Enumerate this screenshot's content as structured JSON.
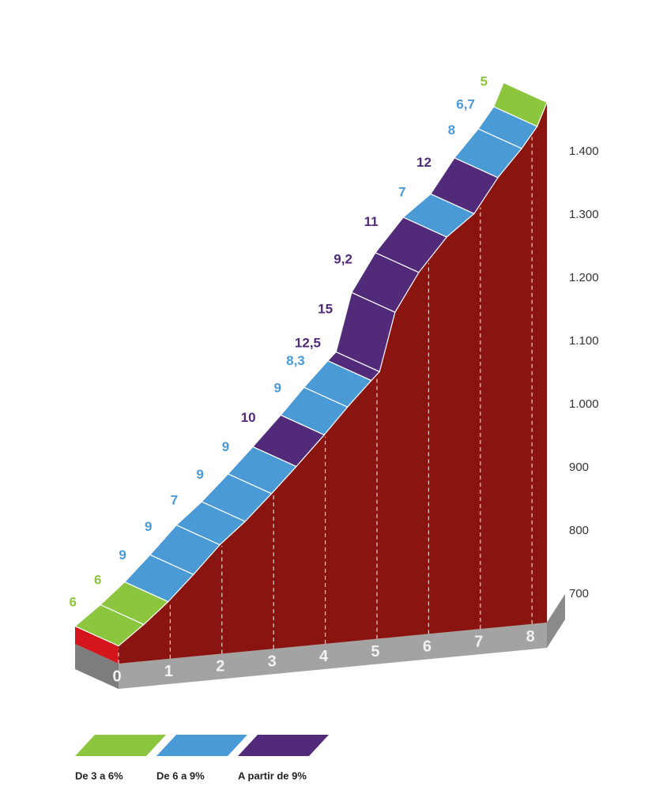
{
  "chart_data": {
    "type": "climb-profile",
    "km": [
      0,
      0.49,
      0.96,
      1.45,
      1.96,
      2.45,
      2.96,
      3.44,
      3.98,
      4.43,
      4.89,
      5.05,
      5.35,
      5.81,
      6.35,
      6.88,
      7.34,
      7.8,
      8.1,
      8.29
    ],
    "elevation": [
      618,
      652,
      688,
      731,
      778,
      815,
      859,
      902,
      952,
      996,
      1038,
      1052,
      1146,
      1209,
      1265,
      1302,
      1359,
      1405,
      1440,
      1478
    ],
    "gradients": [
      6,
      6,
      9,
      9,
      7,
      9,
      9,
      10,
      9,
      8.3,
      12.5,
      15,
      9.2,
      11,
      7,
      12,
      8,
      6.7,
      5
    ],
    "value_labels": [
      "6",
      "6",
      "9",
      "9",
      "7",
      "9",
      "9",
      "10",
      "9",
      "8,3",
      "12,5",
      "15",
      "9,2",
      "11",
      "7",
      "12",
      "8",
      "6,7",
      "5"
    ],
    "colors": [
      "#8cc63e",
      "#8cc63e",
      "#4a9ad6",
      "#4a9ad6",
      "#4a9ad6",
      "#4a9ad6",
      "#4a9ad6",
      "#512a7a",
      "#4a9ad6",
      "#4a9ad6",
      "#512a7a",
      "#512a7a",
      "#512a7a",
      "#512a7a",
      "#4a9ad6",
      "#512a7a",
      "#4a9ad6",
      "#4a9ad6",
      "#8cc63e"
    ],
    "xlim": [
      0,
      8.3
    ],
    "xticks": [
      0,
      1,
      2,
      3,
      4,
      5,
      6,
      7,
      8
    ],
    "ylim": [
      600,
      1500
    ],
    "yticks": [
      700,
      800,
      900,
      {
        "value": 1000,
        "label": "1.000"
      },
      {
        "value": 1100,
        "label": "1.100"
      },
      {
        "value": 1200,
        "label": "1.200"
      },
      {
        "value": 1300,
        "label": "1.300"
      },
      {
        "value": 1400,
        "label": "1.400"
      }
    ],
    "legend": [
      {
        "name": "De 3 a 6%",
        "color": "#8cc63e"
      },
      {
        "name": "De 6 a 9%",
        "color": "#4a9ad6"
      },
      {
        "name": "A partir de 9%",
        "color": "#512a7a"
      }
    ]
  }
}
